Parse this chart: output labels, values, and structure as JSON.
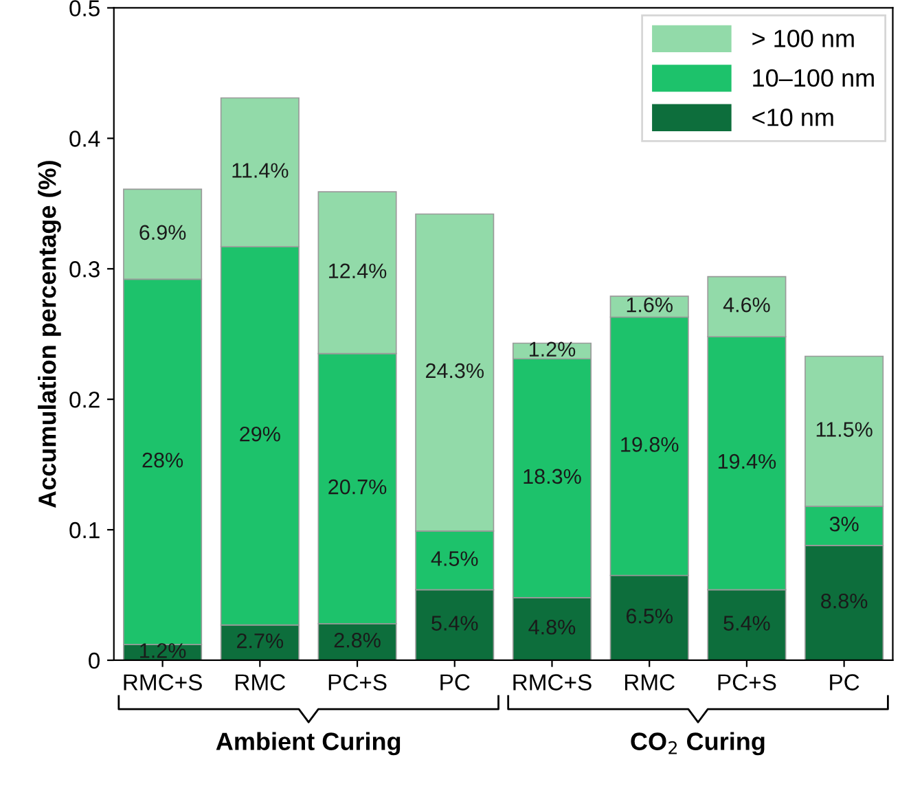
{
  "chart_data": {
    "type": "bar",
    "stacked": true,
    "ylabel": "Accumulation percentage (%)",
    "categories": [
      "RMC+S",
      "RMC",
      "PC+S",
      "PC",
      "RMC+S",
      "RMC",
      "PC+S",
      "PC"
    ],
    "series": [
      {
        "name": "<10 nm",
        "color": "#0d6e3c",
        "values": [
          0.012,
          0.027,
          0.028,
          0.054,
          0.048,
          0.065,
          0.054,
          0.088
        ],
        "value_labels": [
          "1.2%",
          "2.7%",
          "2.8%",
          "5.4%",
          "4.8%",
          "6.5%",
          "5.4%",
          "8.8%"
        ]
      },
      {
        "name": "10–100 nm",
        "color": "#1dc26b",
        "values": [
          0.28,
          0.29,
          0.207,
          0.045,
          0.183,
          0.198,
          0.194,
          0.03
        ],
        "value_labels": [
          "28%",
          "29%",
          "20.7%",
          "4.5%",
          "18.3%",
          "19.8%",
          "19.4%",
          "3%"
        ]
      },
      {
        "name": "> 100 nm",
        "color": "#92daa9",
        "values": [
          0.069,
          0.114,
          0.124,
          0.243,
          0.012,
          0.016,
          0.046,
          0.115
        ],
        "value_labels": [
          "6.9%",
          "11.4%",
          "12.4%",
          "24.3%",
          "1.2%",
          "1.6%",
          "4.6%",
          "11.5%"
        ]
      }
    ],
    "ylim": [
      0,
      0.5
    ],
    "yticks": [
      0,
      0.1,
      0.2,
      0.3,
      0.4,
      0.5
    ],
    "grid": false,
    "legend": "top right",
    "annotations": [
      "Ambient Curing",
      "CO$_{2}$ Curing"
    ]
  }
}
